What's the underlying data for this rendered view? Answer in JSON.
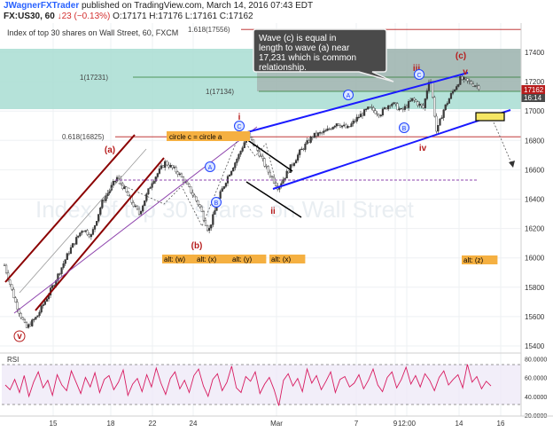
{
  "header": {
    "author": "JWagnerFXTrader",
    "published": "published on TradingView.com, March 14, 2016 07:43 EDT",
    "symbol": "FX:US30, 60",
    "change": "↓23 (−0.13%)",
    "ohlc": "O:17171 H:17176 L:17161 C:17162"
  },
  "chart_data": {
    "type": "candlestick",
    "title": "Index of top 30 shares on Wall Street, 60, FXCM",
    "price_axis": {
      "ticks": [
        "17400",
        "17200",
        "17000",
        "16800",
        "16600",
        "16400",
        "16200",
        "16000",
        "15800",
        "15600",
        "15400"
      ],
      "last_price": "17162",
      "countdown": "16:14",
      "range": [
        15400,
        17550
      ]
    },
    "time_axis": {
      "ticks": [
        "15",
        "18",
        "22",
        "24",
        "Mar",
        "7",
        "9",
        "12:00",
        "14",
        "16"
      ]
    },
    "price_path": [
      {
        "t": 0.0,
        "p": 15950
      },
      {
        "t": 0.5,
        "p": 15700
      },
      {
        "t": 1.0,
        "p": 15520
      },
      {
        "t": 1.5,
        "p": 15600
      },
      {
        "t": 2.2,
        "p": 15800
      },
      {
        "t": 3.0,
        "p": 16050
      },
      {
        "t": 3.6,
        "p": 16200
      },
      {
        "t": 4.0,
        "p": 16150
      },
      {
        "t": 4.5,
        "p": 16380
      },
      {
        "t": 5.2,
        "p": 16550
      },
      {
        "t": 5.7,
        "p": 16420
      },
      {
        "t": 6.2,
        "p": 16300
      },
      {
        "t": 6.8,
        "p": 16520
      },
      {
        "t": 7.4,
        "p": 16650
      },
      {
        "t": 8.0,
        "p": 16580
      },
      {
        "t": 8.6,
        "p": 16450
      },
      {
        "t": 9.0,
        "p": 16350
      },
      {
        "t": 9.4,
        "p": 16180
      },
      {
        "t": 9.9,
        "p": 16420
      },
      {
        "t": 10.3,
        "p": 16560
      },
      {
        "t": 10.8,
        "p": 16700
      },
      {
        "t": 11.2,
        "p": 16840
      },
      {
        "t": 11.7,
        "p": 16720
      },
      {
        "t": 12.1,
        "p": 16600
      },
      {
        "t": 12.6,
        "p": 16480
      },
      {
        "t": 13.1,
        "p": 16600
      },
      {
        "t": 13.6,
        "p": 16720
      },
      {
        "t": 14.2,
        "p": 16830
      },
      {
        "t": 14.8,
        "p": 16860
      },
      {
        "t": 15.3,
        "p": 16920
      },
      {
        "t": 15.8,
        "p": 16880
      },
      {
        "t": 16.3,
        "p": 16960
      },
      {
        "t": 16.8,
        "p": 17020
      },
      {
        "t": 17.3,
        "p": 16980
      },
      {
        "t": 17.8,
        "p": 17060
      },
      {
        "t": 18.3,
        "p": 17000
      },
      {
        "t": 18.8,
        "p": 17080
      },
      {
        "t": 19.3,
        "p": 17020
      },
      {
        "t": 19.6,
        "p": 17250
      },
      {
        "t": 19.9,
        "p": 16850
      },
      {
        "t": 20.2,
        "p": 17000
      },
      {
        "t": 20.6,
        "p": 17120
      },
      {
        "t": 21.0,
        "p": 17220
      },
      {
        "t": 21.5,
        "p": 17190
      },
      {
        "t": 21.9,
        "p": 17162
      }
    ],
    "levels": [
      {
        "label": "1.618(17556)",
        "price": 17556,
        "color": "#b71c1c"
      },
      {
        "label": "1(17231)",
        "price": 17231,
        "color": "#2e7d32"
      },
      {
        "label": "1(17134)",
        "price": 17134,
        "color": "#2e7d32"
      },
      {
        "label": "0.618(16825)",
        "price": 16825,
        "color": "#b71c1c"
      }
    ],
    "annotations": {
      "callout": "Wave (c) is equal in length to wave (a) near 17,231 which is common relationship.",
      "box_label": "circle c = circle a",
      "alt_labels": [
        "alt: (w)",
        "alt: (x)",
        "alt: (y)",
        "alt: (x)",
        "alt: (z)"
      ],
      "wave_red": [
        "(a)",
        "(b)",
        "(c)",
        "i",
        "ii",
        "iii",
        "iv",
        "v",
        "v"
      ],
      "wave_circle": [
        "A",
        "B",
        "C",
        "A",
        "B",
        "C"
      ]
    },
    "rsi": {
      "label": "RSI",
      "ticks": [
        "80.0000",
        "60.0000",
        "40.0000",
        "20.0000"
      ],
      "range": [
        20,
        85
      ],
      "values": [
        52,
        47,
        58,
        44,
        62,
        40,
        55,
        66,
        49,
        57,
        41,
        63,
        52,
        46,
        67,
        55,
        43,
        60,
        50,
        65,
        44,
        58,
        62,
        47,
        55,
        68,
        41,
        53,
        59,
        45,
        63,
        50,
        70,
        54,
        42,
        59,
        66,
        48,
        57,
        44,
        62,
        69,
        51,
        40,
        58,
        64,
        46,
        55,
        72,
        49,
        44,
        61,
        56,
        66,
        43,
        53,
        60,
        47,
        30,
        57,
        64,
        51,
        59,
        45,
        69,
        54,
        62,
        47,
        56,
        66,
        44,
        58,
        61,
        50,
        54,
        63,
        48,
        57,
        69,
        52,
        45,
        60,
        66,
        49,
        58,
        71,
        53,
        62,
        50,
        64,
        57,
        46,
        60,
        67,
        52,
        58,
        63,
        49,
        74,
        55,
        61,
        48,
        56,
        51
      ],
      "color": "#d81b60"
    },
    "colors": {
      "up_candle": "#3a3a3a",
      "channel_blue": "#1a1aff",
      "channel_red": "#8b0000",
      "wave_red": "#b71c1c",
      "circle_blue": "#1e40ff",
      "highlight_green": "#a8ddd2",
      "highlight_gray": "#b5b5b5",
      "label_yellow": "#f5b041"
    }
  }
}
